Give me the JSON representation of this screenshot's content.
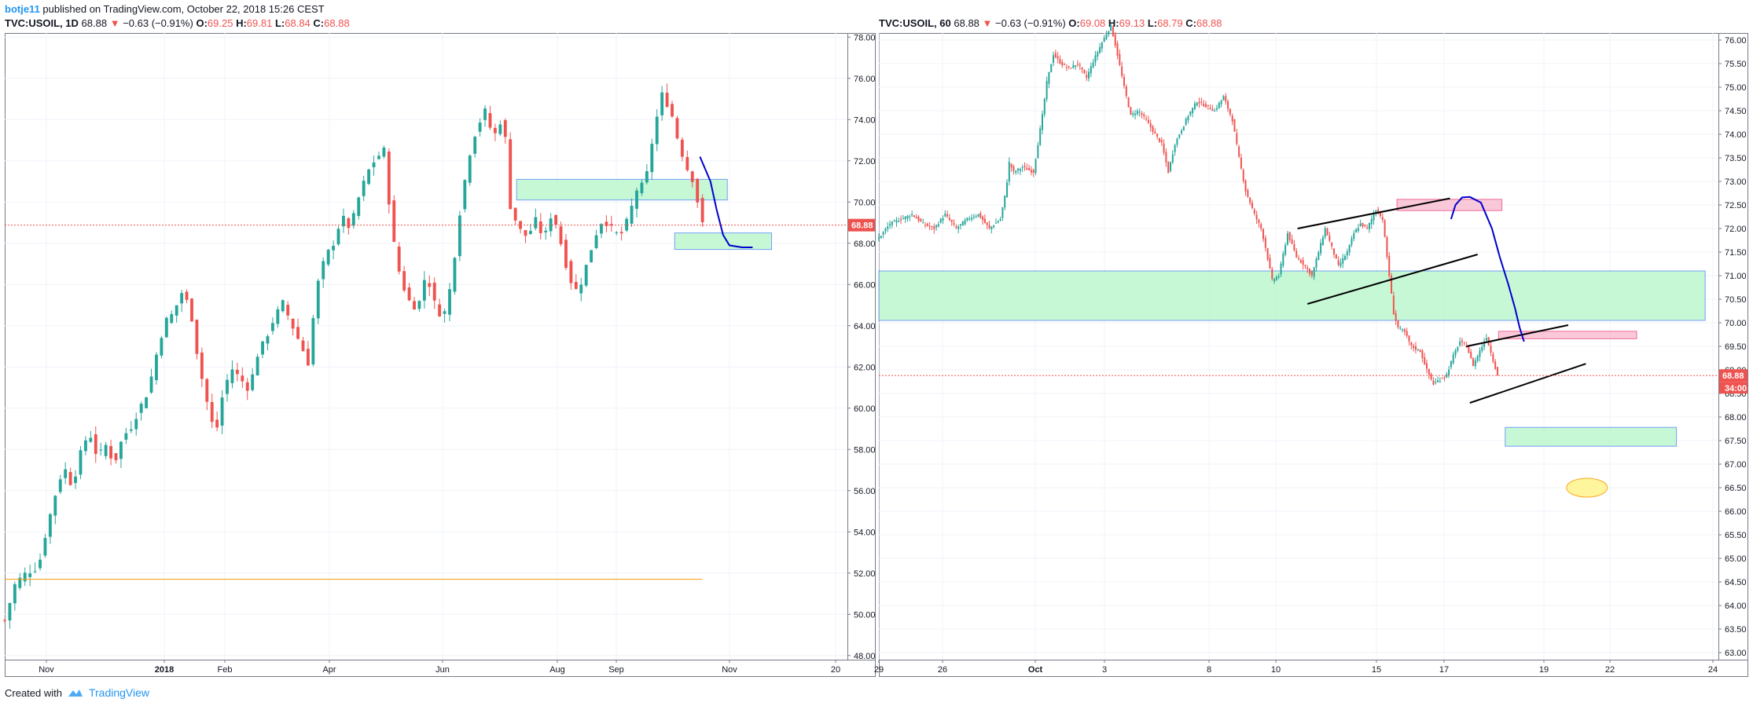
{
  "header": {
    "author": "botje11",
    "published": "published on TradingView.com, October 22, 2018 15:26 CEST"
  },
  "footer": {
    "created_with": "Created with",
    "brand": "TradingView"
  },
  "colors": {
    "up": "#26a69a",
    "down": "#ef5350",
    "zone_green": "#b9f6ca",
    "zone_pink": "#f8bbd0",
    "projection": "#0000cc",
    "price_tag": "#ef5350"
  },
  "chart_data": [
    {
      "type": "candlestick",
      "legend": {
        "symbol": "TVC:USOIL, 1D",
        "last": "68.88",
        "change": "−0.63 (−0.91%)",
        "o": "69.25",
        "h": "69.81",
        "l": "68.84",
        "c": "68.88"
      },
      "x_labels": [
        "Nov",
        "2018",
        "Feb",
        "Apr",
        "Jun",
        "Aug",
        "Sep",
        "Nov",
        "20"
      ],
      "y_ticks": [
        "78.00",
        "76.00",
        "74.00",
        "72.00",
        "70.00",
        "68.00",
        "66.00",
        "64.00",
        "62.00",
        "60.00",
        "58.00",
        "56.00",
        "54.00",
        "52.00",
        "50.00",
        "48.00"
      ],
      "ylim": [
        47.8,
        78.2
      ],
      "last_price_tag": "68.88",
      "last_price": 68.88,
      "close_path": [
        [
          0,
          49.7
        ],
        [
          5,
          51.5
        ],
        [
          10,
          52.0
        ],
        [
          16,
          52.3
        ],
        [
          20,
          54.2
        ],
        [
          24,
          55.8
        ],
        [
          28,
          57.2
        ],
        [
          32,
          56.2
        ],
        [
          36,
          57.8
        ],
        [
          40,
          58.9
        ],
        [
          44,
          57.6
        ],
        [
          48,
          58.2
        ],
        [
          52,
          57.3
        ],
        [
          56,
          58.6
        ],
        [
          60,
          59.1
        ],
        [
          64,
          60.0
        ],
        [
          68,
          60.8
        ],
        [
          72,
          62.6
        ],
        [
          76,
          64.2
        ],
        [
          80,
          64.6
        ],
        [
          84,
          65.6
        ],
        [
          88,
          64.9
        ],
        [
          92,
          62.2
        ],
        [
          96,
          60.3
        ],
        [
          100,
          58.6
        ],
        [
          104,
          61.0
        ],
        [
          108,
          61.9
        ],
        [
          112,
          61.4
        ],
        [
          116,
          60.9
        ],
        [
          120,
          62.6
        ],
        [
          124,
          63.4
        ],
        [
          128,
          64.4
        ],
        [
          132,
          65.1
        ],
        [
          136,
          64.1
        ],
        [
          140,
          63.2
        ],
        [
          144,
          62.2
        ],
        [
          148,
          65.8
        ],
        [
          152,
          67.3
        ],
        [
          156,
          68.0
        ],
        [
          160,
          69.3
        ],
        [
          164,
          68.7
        ],
        [
          168,
          70.2
        ],
        [
          172,
          71.4
        ],
        [
          176,
          72.1
        ],
        [
          180,
          72.5
        ],
        [
          184,
          68.4
        ],
        [
          188,
          66.2
        ],
        [
          192,
          65.2
        ],
        [
          196,
          64.8
        ],
        [
          200,
          66.6
        ],
        [
          204,
          65.1
        ],
        [
          208,
          64.3
        ],
        [
          212,
          66.1
        ],
        [
          216,
          69.5
        ],
        [
          220,
          72.1
        ],
        [
          224,
          73.6
        ],
        [
          228,
          74.4
        ],
        [
          232,
          73.1
        ],
        [
          236,
          74.1
        ],
        [
          238,
          72.8
        ],
        [
          240,
          69.8
        ],
        [
          244,
          68.7
        ],
        [
          248,
          68.3
        ],
        [
          252,
          69.1
        ],
        [
          256,
          68.2
        ],
        [
          260,
          69.6
        ],
        [
          264,
          68.0
        ],
        [
          268,
          66.3
        ],
        [
          272,
          65.6
        ],
        [
          276,
          66.9
        ],
        [
          280,
          68.3
        ],
        [
          284,
          69.2
        ],
        [
          288,
          68.7
        ],
        [
          292,
          68.3
        ],
        [
          296,
          69.2
        ],
        [
          300,
          70.6
        ],
        [
          304,
          70.9
        ],
        [
          306,
          72.1
        ],
        [
          308,
          73.4
        ],
        [
          312,
          75.2
        ],
        [
          316,
          74.5
        ],
        [
          320,
          72.8
        ],
        [
          324,
          71.6
        ],
        [
          328,
          70.8
        ],
        [
          330,
          68.9
        ]
      ],
      "zones": [
        {
          "kind": "green",
          "x0": 243,
          "x1": 343,
          "y_top": 71.1,
          "y_bot": 70.1
        },
        {
          "kind": "green",
          "x0": 318,
          "x1": 364,
          "y_top": 68.5,
          "y_bot": 67.7
        }
      ],
      "projection": [
        [
          330,
          72.2
        ],
        [
          335,
          71.0
        ],
        [
          338,
          69.6
        ],
        [
          341,
          68.4
        ],
        [
          344,
          67.9
        ],
        [
          350,
          67.8
        ],
        [
          355,
          67.8
        ]
      ],
      "hline": {
        "value": 51.7,
        "x0": 0,
        "x1": 331
      }
    },
    {
      "type": "candlestick",
      "legend": {
        "symbol": "TVC:USOIL, 60",
        "last": "68.88",
        "change": "−0.63 (−0.91%)",
        "o": "69.08",
        "h": "69.13",
        "l": "68.79",
        "c": "68.88"
      },
      "x_labels": [
        "26",
        "Oct",
        "3",
        "8",
        "10",
        "15",
        "17",
        "19",
        "22",
        "24",
        "29"
      ],
      "y_ticks": [
        "76.00",
        "75.50",
        "75.00",
        "74.50",
        "74.00",
        "73.50",
        "73.00",
        "72.50",
        "72.00",
        "71.50",
        "71.00",
        "70.50",
        "70.00",
        "69.50",
        "69.00",
        "68.50",
        "68.00",
        "67.50",
        "67.00",
        "66.50",
        "66.00",
        "65.50",
        "65.00",
        "64.50",
        "64.00",
        "63.50",
        "63.00"
      ],
      "ylim": [
        62.85,
        76.15
      ],
      "last_price_tag": "68.88",
      "countdown_tag": "34:00",
      "last_price": 68.88,
      "close_path": [
        [
          0,
          71.8
        ],
        [
          10,
          72.1
        ],
        [
          20,
          72.2
        ],
        [
          30,
          72.3
        ],
        [
          40,
          72.1
        ],
        [
          50,
          72.0
        ],
        [
          60,
          72.3
        ],
        [
          70,
          72.0
        ],
        [
          80,
          72.2
        ],
        [
          90,
          72.3
        ],
        [
          100,
          72.0
        ],
        [
          110,
          72.2
        ],
        [
          115,
          72.8
        ],
        [
          118,
          73.4
        ],
        [
          122,
          73.2
        ],
        [
          130,
          73.3
        ],
        [
          140,
          73.2
        ],
        [
          148,
          74.4
        ],
        [
          152,
          75.1
        ],
        [
          158,
          75.7
        ],
        [
          165,
          75.5
        ],
        [
          172,
          75.4
        ],
        [
          180,
          75.5
        ],
        [
          188,
          75.2
        ],
        [
          195,
          75.6
        ],
        [
          203,
          76.0
        ],
        [
          210,
          76.3
        ],
        [
          215,
          75.8
        ],
        [
          222,
          75.0
        ],
        [
          228,
          74.4
        ],
        [
          235,
          74.5
        ],
        [
          242,
          74.3
        ],
        [
          250,
          74.0
        ],
        [
          256,
          73.8
        ],
        [
          262,
          73.2
        ],
        [
          268,
          73.8
        ],
        [
          274,
          74.1
        ],
        [
          280,
          74.4
        ],
        [
          288,
          74.7
        ],
        [
          296,
          74.6
        ],
        [
          304,
          74.5
        ],
        [
          312,
          74.8
        ],
        [
          320,
          74.3
        ],
        [
          326,
          73.5
        ],
        [
          332,
          72.8
        ],
        [
          340,
          72.3
        ],
        [
          346,
          72.0
        ],
        [
          350,
          71.6
        ],
        [
          356,
          70.9
        ],
        [
          362,
          71.0
        ],
        [
          370,
          71.9
        ],
        [
          378,
          71.4
        ],
        [
          386,
          71.2
        ],
        [
          392,
          71.0
        ],
        [
          398,
          71.5
        ],
        [
          404,
          72.0
        ],
        [
          410,
          71.6
        ],
        [
          416,
          71.2
        ],
        [
          424,
          71.5
        ],
        [
          430,
          71.9
        ],
        [
          436,
          72.1
        ],
        [
          442,
          72.0
        ],
        [
          450,
          72.4
        ],
        [
          456,
          72.2
        ],
        [
          462,
          71.0
        ],
        [
          466,
          70.2
        ],
        [
          470,
          69.9
        ],
        [
          476,
          69.8
        ],
        [
          482,
          69.5
        ],
        [
          490,
          69.4
        ],
        [
          496,
          69.0
        ],
        [
          502,
          68.7
        ],
        [
          508,
          68.8
        ],
        [
          514,
          68.9
        ],
        [
          520,
          69.3
        ],
        [
          526,
          69.6
        ],
        [
          532,
          69.5
        ],
        [
          538,
          69.1
        ],
        [
          544,
          69.4
        ],
        [
          550,
          69.7
        ],
        [
          556,
          69.2
        ],
        [
          560,
          68.9
        ]
      ],
      "zones": [
        {
          "kind": "green",
          "x0": 0,
          "x1": 748,
          "y_top": 71.1,
          "y_bot": 70.05
        },
        {
          "kind": "pink",
          "x0": 469,
          "x1": 564,
          "y_top": 72.62,
          "y_bot": 72.38
        },
        {
          "kind": "pink",
          "x0": 561,
          "x1": 686,
          "y_top": 69.82,
          "y_bot": 69.66
        },
        {
          "kind": "green",
          "x0": 567,
          "x1": 722,
          "y_top": 67.78,
          "y_bot": 67.38
        }
      ],
      "projection": [
        [
          518,
          72.2
        ],
        [
          522,
          72.5
        ],
        [
          528,
          72.66
        ],
        [
          535,
          72.67
        ],
        [
          545,
          72.55
        ],
        [
          555,
          72.0
        ],
        [
          562,
          71.4
        ],
        [
          570,
          70.8
        ],
        [
          576,
          70.3
        ],
        [
          580,
          69.9
        ],
        [
          584,
          69.6
        ]
      ],
      "trendlines": [
        [
          [
            379,
            72.0
          ],
          [
            517,
            72.64
          ]
        ],
        [
          [
            388,
            70.4
          ],
          [
            542,
            71.45
          ]
        ],
        [
          [
            532,
            69.5
          ],
          [
            624,
            69.95
          ]
        ],
        [
          [
            535,
            68.3
          ],
          [
            640,
            69.13
          ]
        ]
      ],
      "ellipse": {
        "cx": 641,
        "cy": 66.5
      }
    }
  ]
}
